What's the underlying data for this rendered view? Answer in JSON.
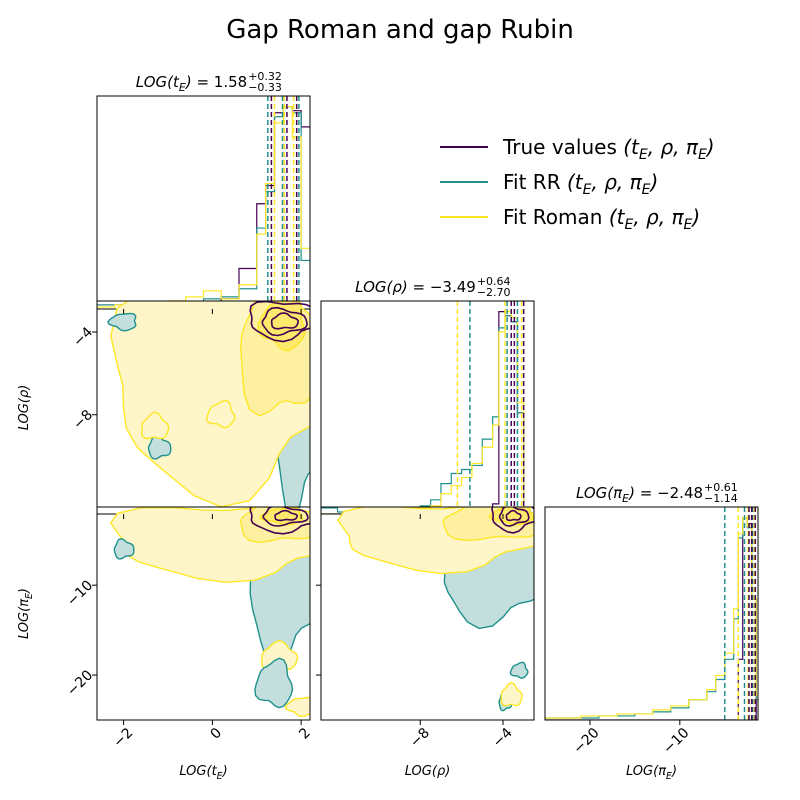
{
  "figure": {
    "title": "Gap Roman and gap Rubin"
  },
  "colors": {
    "true_values": "#440154",
    "fit_rr": "#21918c",
    "fit_roman": "#fde725",
    "roman_fill_light": "#fef6c8",
    "roman_fill_mid": "#fdf0a0",
    "roman_fill_dark": "#fde96c",
    "rr_fill": "#c2dfdd"
  },
  "legend": {
    "placement": "top-right",
    "items": [
      {
        "label": "True values",
        "math": "(t_E, ρ, π_E)",
        "color_key": "true_values"
      },
      {
        "label": "Fit RR",
        "math": "(t_E, ρ, π_E)",
        "color_key": "fit_rr"
      },
      {
        "label": "Fit Roman",
        "math": "(t_E, ρ, π_E)",
        "color_key": "fit_roman"
      }
    ]
  },
  "chart_data": {
    "type": "corner",
    "parameters": [
      {
        "key": "tE",
        "label": "LOG(t_E)",
        "range": [
          -2.6,
          2.2
        ],
        "ticks": [
          -2,
          0,
          2
        ],
        "tick_labels": [
          "−2",
          "0",
          "2"
        ],
        "summary": {
          "median": "1.58",
          "plus": "+0.32",
          "minus": "−0.33",
          "title_text": "LOG(t_E) = 1.58"
        }
      },
      {
        "key": "rho",
        "label": "LOG(ρ)",
        "range": [
          -12.8,
          -2.5
        ],
        "ticks": [
          -8,
          -4
        ],
        "tick_labels": [
          "−8",
          "−4"
        ],
        "summary": {
          "median": "−3.49",
          "plus": "+0.64",
          "minus": "−2.70",
          "title_text": "LOG(ρ) = −3.49"
        }
      },
      {
        "key": "piE",
        "label": "LOG(π_E)",
        "range": [
          -25,
          -1.3
        ],
        "ticks": [
          -20,
          -10
        ],
        "tick_labels": [
          "−20",
          "−10"
        ],
        "summary": {
          "median": "−2.48",
          "plus": "+0.61",
          "minus": "−1.14",
          "title_text": "LOG(π_E) = −2.48"
        }
      }
    ],
    "diagonal": [
      {
        "parameter": "tE",
        "bin_edges": [
          -2.6,
          -2.2,
          -1.8,
          -1.4,
          -1.0,
          -0.6,
          -0.2,
          0.2,
          0.6,
          1.0,
          1.2,
          1.4,
          1.6,
          1.8,
          2.0,
          2.2
        ],
        "series": [
          {
            "name": "True values",
            "color_key": "true_values",
            "counts": [
              0.02,
              0.02,
              0.02,
              0.02,
              0.02,
              0.02,
              0.02,
              0.05,
              0.2,
              0.52,
              0.61,
              0.97,
              1.0,
              0.98,
              0.9
            ]
          },
          {
            "name": "Fit RR",
            "color_key": "fit_rr",
            "counts": [
              0.02,
              0.02,
              0.01,
              0.03,
              0.02,
              0.03,
              0.05,
              0.06,
              0.1,
              0.4,
              0.58,
              0.95,
              1.0,
              0.97,
              0.24
            ]
          },
          {
            "name": "Fit Roman",
            "color_key": "fit_roman",
            "counts": [
              0.01,
              0.02,
              0.03,
              0.02,
              0.04,
              0.06,
              0.09,
              0.05,
              0.12,
              0.37,
              0.62,
              0.92,
              1.0,
              0.85,
              0.3
            ]
          }
        ],
        "quantile_lines": [
          {
            "color_key": "true_values",
            "values": [
              1.33,
              1.68,
              1.9
            ]
          },
          {
            "color_key": "fit_rr",
            "values": [
              1.25,
              1.58,
              1.95
            ]
          },
          {
            "color_key": "fit_roman",
            "values": [
              1.4,
              1.62,
              1.83
            ]
          }
        ]
      },
      {
        "parameter": "rho",
        "bin_edges": [
          -12.8,
          -12.0,
          -11.0,
          -10.0,
          -9.0,
          -8.0,
          -7.5,
          -7.0,
          -6.5,
          -6.0,
          -5.5,
          -5.0,
          -4.5,
          -4.2,
          -3.9,
          -3.6,
          -3.3,
          -3.0,
          -2.7,
          -2.5
        ],
        "series": [
          {
            "name": "True values",
            "color_key": "true_values",
            "counts": [
              0.0,
              0.0,
              0.0,
              0.0,
              0.0,
              0.0,
              0.0,
              0.0,
              0.0,
              0.0,
              0.0,
              0.0,
              0.05,
              1.0,
              0.98,
              0.95,
              0.5,
              0.0,
              0.0
            ]
          },
          {
            "name": "Fit RR",
            "color_key": "fit_rr",
            "counts": [
              0.03,
              0.01,
              0.02,
              0.02,
              0.03,
              0.04,
              0.07,
              0.15,
              0.2,
              0.22,
              0.24,
              0.37,
              0.48,
              0.92,
              0.98,
              0.95,
              0.5,
              0.0,
              0.0
            ]
          },
          {
            "name": "Fit Roman",
            "color_key": "fit_roman",
            "counts": [
              0.0,
              0.0,
              0.01,
              0.02,
              0.02,
              0.03,
              0.04,
              0.1,
              0.14,
              0.18,
              0.25,
              0.33,
              0.44,
              0.9,
              1.0,
              0.97,
              0.55,
              0.0,
              0.0
            ]
          }
        ],
        "quantile_lines": [
          {
            "color_key": "fit_roman",
            "values": [
              -6.2,
              -3.9,
              -3.1
            ]
          },
          {
            "color_key": "fit_rr",
            "values": [
              -5.6,
              -3.8,
              -3.3
            ]
          },
          {
            "color_key": "true_values",
            "values": [
              -3.6,
              -3.45,
              -3.0
            ]
          }
        ]
      },
      {
        "parameter": "piE",
        "bin_edges": [
          -25,
          -23,
          -21,
          -19,
          -17,
          -15,
          -13,
          -11,
          -9,
          -7,
          -6,
          -5,
          -4,
          -3.5,
          -3,
          -2.5,
          -2,
          -1.5,
          -1.3
        ],
        "series": [
          {
            "name": "True values",
            "color_key": "true_values",
            "counts": [
              0.0,
              0.0,
              0.0,
              0.0,
              0.0,
              0.0,
              0.0,
              0.0,
              0.0,
              0.0,
              0.0,
              0.0,
              0.0,
              0.3,
              1.0,
              0.97,
              0.6,
              0.0
            ]
          },
          {
            "name": "Fit RR",
            "color_key": "fit_rr",
            "counts": [
              0.01,
              0.01,
              0.01,
              0.02,
              0.02,
              0.03,
              0.04,
              0.06,
              0.1,
              0.14,
              0.2,
              0.3,
              0.5,
              0.9,
              1.0,
              0.95,
              0.6,
              0.1
            ]
          },
          {
            "name": "Fit Roman",
            "color_key": "fit_roman",
            "counts": [
              0.01,
              0.01,
              0.02,
              0.02,
              0.03,
              0.03,
              0.05,
              0.07,
              0.1,
              0.15,
              0.22,
              0.33,
              0.55,
              0.92,
              1.0,
              0.96,
              0.6,
              0.12
            ]
          }
        ],
        "quantile_lines": [
          {
            "color_key": "fit_rr",
            "values": [
              -5.0,
              -2.8,
              -1.9
            ]
          },
          {
            "color_key": "fit_roman",
            "values": [
              -3.5,
              -2.4,
              -1.7
            ]
          },
          {
            "color_key": "true_values",
            "values": [
              -2.3,
              -2.0,
              -1.6
            ]
          }
        ]
      }
    ],
    "off_diagonal": [
      {
        "x": "tE",
        "y": "rho",
        "roman_levels": [
          {
            "level": 1,
            "center": [
              0.2,
              -6.6
            ],
            "spread": [
              2.5,
              5.0
            ]
          },
          {
            "level": 2,
            "center": [
              1.5,
              -4.8
            ],
            "spread": [
              0.9,
              3.2
            ]
          },
          {
            "level": 3,
            "center": [
              1.6,
              -3.6
            ],
            "spread": [
              0.5,
              1.2
            ]
          }
        ],
        "rr_levels": [
          {
            "level": 1,
            "center": [
              1.9,
              -8.0
            ],
            "spread": [
              0.5,
              4.5
            ]
          },
          {
            "level": 2,
            "center": [
              1.65,
              -3.4
            ],
            "spread": [
              0.55,
              0.7
            ]
          }
        ],
        "true_levels": [
          {
            "level": 1,
            "center": [
              1.6,
              -3.4
            ],
            "spread": [
              0.8,
              0.9
            ]
          },
          {
            "level": 2,
            "center": [
              1.6,
              -3.5
            ],
            "spread": [
              0.5,
              0.6
            ]
          },
          {
            "level": 3,
            "center": [
              1.62,
              -3.5
            ],
            "spread": [
              0.3,
              0.35
            ]
          }
        ],
        "islands": [
          {
            "series": "Fit RR",
            "center": [
              -1.2,
              -9.6
            ],
            "spread": [
              0.25,
              0.5
            ]
          },
          {
            "series": "Fit Roman",
            "center": [
              -1.3,
              -8.6
            ],
            "spread": [
              0.3,
              0.6
            ]
          },
          {
            "series": "Fit Roman",
            "center": [
              0.2,
              -8.0
            ],
            "spread": [
              0.3,
              0.6
            ]
          },
          {
            "series": "Fit RR",
            "center": [
              -2.0,
              -3.5
            ],
            "spread": [
              0.3,
              0.4
            ]
          }
        ]
      },
      {
        "x": "tE",
        "y": "piE",
        "roman_levels": [
          {
            "level": 1,
            "center": [
              0.3,
              -5.0
            ],
            "spread": [
              2.6,
              4.0
            ]
          },
          {
            "level": 2,
            "center": [
              1.5,
              -3.0
            ],
            "spread": [
              0.9,
              2.2
            ]
          },
          {
            "level": 3,
            "center": [
              1.6,
              -2.3
            ],
            "spread": [
              0.45,
              0.9
            ]
          }
        ],
        "rr_levels": [
          {
            "level": 1,
            "center": [
              1.6,
              -9.0
            ],
            "spread": [
              0.8,
              9.0
            ]
          },
          {
            "level": 2,
            "center": [
              1.55,
              -2.5
            ],
            "spread": [
              0.55,
              1.1
            ]
          }
        ],
        "true_levels": [
          {
            "level": 1,
            "center": [
              1.6,
              -2.4
            ],
            "spread": [
              0.8,
              1.6
            ]
          },
          {
            "level": 2,
            "center": [
              1.62,
              -2.3
            ],
            "spread": [
              0.5,
              1.0
            ]
          },
          {
            "level": 3,
            "center": [
              1.65,
              -2.3
            ],
            "spread": [
              0.25,
              0.5
            ]
          }
        ],
        "islands": [
          {
            "series": "Fit RR",
            "center": [
              -2.0,
              -6.0
            ],
            "spread": [
              0.22,
              1.0
            ]
          },
          {
            "series": "Fit Roman",
            "center": [
              1.5,
              -18.0
            ],
            "spread": [
              0.4,
              1.5
            ]
          },
          {
            "series": "Fit RR",
            "center": [
              1.4,
              -21.0
            ],
            "spread": [
              0.4,
              2.5
            ]
          },
          {
            "series": "Fit Roman",
            "center": [
              2.0,
              -23.5
            ],
            "spread": [
              0.3,
              1.0
            ]
          }
        ]
      },
      {
        "x": "rho",
        "y": "piE",
        "roman_levels": [
          {
            "level": 1,
            "center": [
              -7.0,
              -4.5
            ],
            "spread": [
              5.0,
              3.6
            ]
          },
          {
            "level": 2,
            "center": [
              -4.5,
              -3.0
            ],
            "spread": [
              2.5,
              2.0
            ]
          },
          {
            "level": 3,
            "center": [
              -3.5,
              -2.2
            ],
            "spread": [
              1.0,
              1.0
            ]
          }
        ],
        "rr_levels": [
          {
            "level": 1,
            "center": [
              -4.5,
              -8.5
            ],
            "spread": [
              2.5,
              5.5
            ]
          },
          {
            "level": 2,
            "center": [
              -3.5,
              -2.2
            ],
            "spread": [
              0.9,
              0.8
            ]
          }
        ],
        "true_levels": [
          {
            "level": 1,
            "center": [
              -3.5,
              -2.3
            ],
            "spread": [
              1.1,
              1.6
            ]
          },
          {
            "level": 2,
            "center": [
              -3.5,
              -2.3
            ],
            "spread": [
              0.7,
              1.0
            ]
          },
          {
            "level": 3,
            "center": [
              -3.5,
              -2.3
            ],
            "spread": [
              0.35,
              0.5
            ]
          }
        ],
        "islands": [
          {
            "series": "Fit RR",
            "center": [
              -3.9,
              -23.0
            ],
            "spread": [
              0.3,
              0.9
            ]
          },
          {
            "series": "Fit Roman",
            "center": [
              -3.6,
              -22.3
            ],
            "spread": [
              0.5,
              1.2
            ]
          },
          {
            "series": "Fit RR",
            "center": [
              -3.2,
              -19.5
            ],
            "spread": [
              0.4,
              0.8
            ]
          }
        ]
      }
    ]
  }
}
